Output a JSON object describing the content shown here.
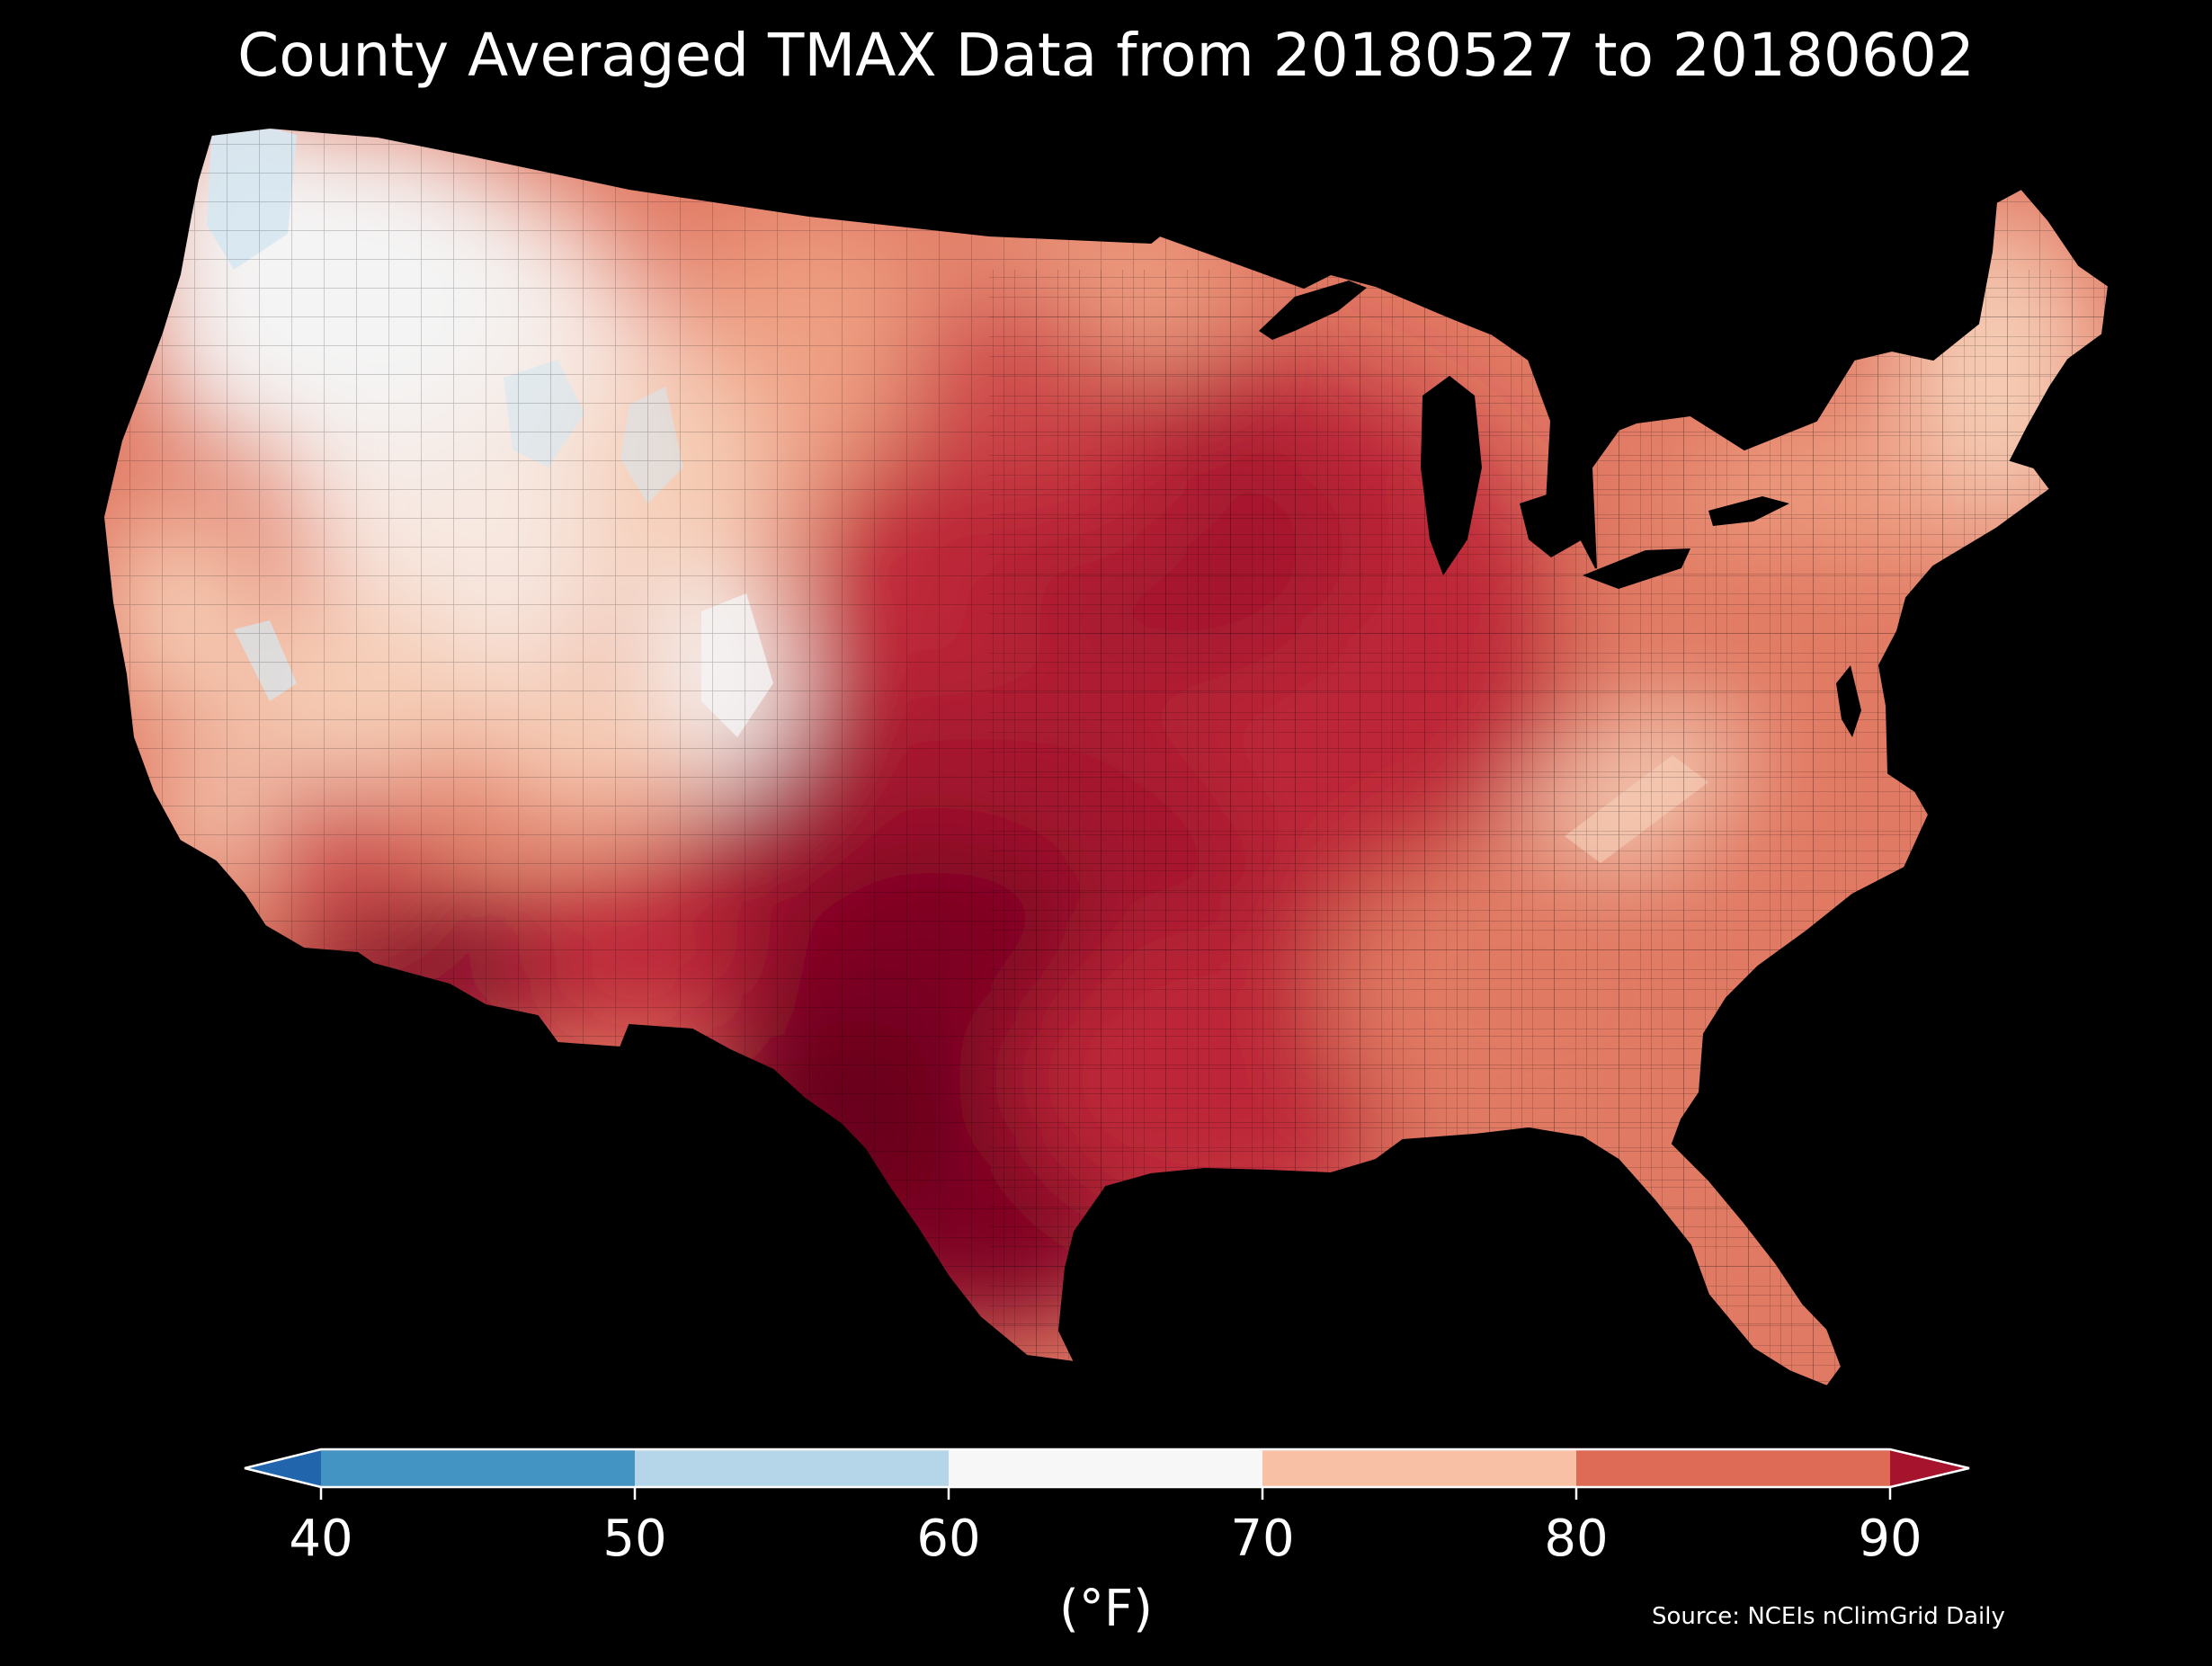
{
  "title": "County Averaged TMAX Data from 20180527 to 20180602",
  "colorbar": {
    "ticks": [
      "40",
      "50",
      "60",
      "70",
      "80",
      "90"
    ],
    "units": "(°F)",
    "bins": [
      {
        "range": "<40",
        "color": "#2166ac"
      },
      {
        "range": "40-50",
        "color": "#4393c3"
      },
      {
        "range": "50-60",
        "color": "#b4d6e8"
      },
      {
        "range": "60-70",
        "color": "#f7f7f7"
      },
      {
        "range": "70-80",
        "color": "#f8c0a4"
      },
      {
        "range": "80-90",
        "color": "#dd6b56"
      },
      {
        "range": ">90",
        "color": "#a5142c"
      }
    ]
  },
  "source": "Source: NCEIs nClimGrid Daily",
  "palette": {
    "background": "#000000",
    "n60": "#f4f4f4",
    "n65": "#f7e8e1",
    "n72": "#f6cdb6",
    "n78": "#ee9f82",
    "n82": "#e17a64",
    "n85": "#cf4b4b",
    "n88": "#bd2838",
    "n91": "#a3132d",
    "n95": "#7d0522",
    "n98": "#67001f",
    "cool": "#d6e7f1"
  }
}
